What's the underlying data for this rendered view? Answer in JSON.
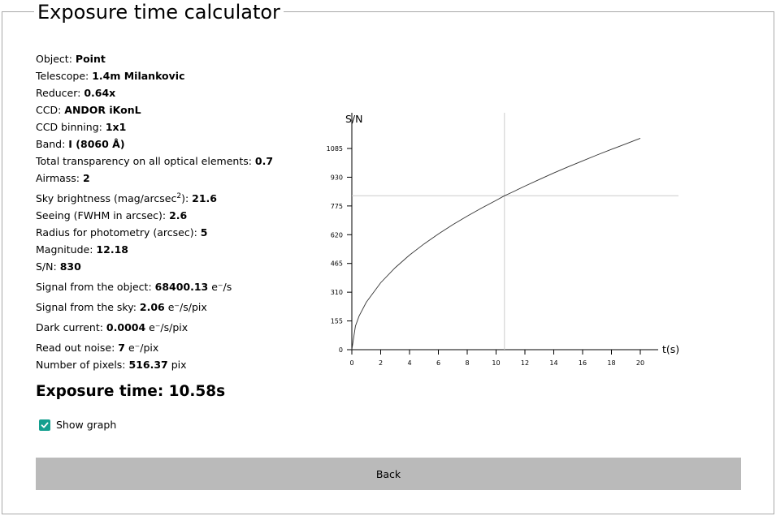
{
  "title": "Exposure time calculator",
  "params": [
    {
      "label": "Object: ",
      "value": "Point",
      "unit": ""
    },
    {
      "label": "Telescope: ",
      "value": "1.4m Milankovic",
      "unit": ""
    },
    {
      "label": "Reducer: ",
      "value": "0.64x",
      "unit": ""
    },
    {
      "label": "CCD: ",
      "value": "ANDOR iKonL",
      "unit": ""
    },
    {
      "label": "CCD binning: ",
      "value": "1x1",
      "unit": ""
    },
    {
      "label": "Band: ",
      "value": "I (8060 Å)",
      "unit": ""
    },
    {
      "label": "Total transparency on all optical elements: ",
      "value": "0.7",
      "unit": ""
    },
    {
      "label": "Airmass: ",
      "value": "2",
      "unit": ""
    },
    {
      "label_pre": "Sky brightness (mag/arcsec",
      "sup": "2",
      "label_post": "): ",
      "value": "21.6",
      "unit": ""
    },
    {
      "label": "Seeing (FWHM in arcsec): ",
      "value": "2.6",
      "unit": ""
    },
    {
      "label": "Radius for photometry (arcsec): ",
      "value": "5",
      "unit": ""
    },
    {
      "label": "Magnitude: ",
      "value": "12.18",
      "unit": ""
    },
    {
      "label": "S/N: ",
      "value": "830",
      "unit": ""
    },
    {
      "label": "Signal from the object: ",
      "value": "68400.13",
      "unit": " e⁻/s"
    },
    {
      "label": "Signal from the sky: ",
      "value": "2.06",
      "unit": " e⁻/s/pix"
    },
    {
      "label": "Dark current: ",
      "value": "0.0004",
      "unit": " e⁻/s/pix"
    },
    {
      "label": "Read out noise: ",
      "value": "7",
      "unit": " e⁻/pix"
    },
    {
      "label": "Number of pixels: ",
      "value": "516.37",
      "unit": " pix"
    }
  ],
  "exposure_text": "Exposure time: 10.58s",
  "show_graph_label": "Show graph",
  "show_graph_checked": true,
  "back_label": "Back",
  "colors": {
    "accent": "#139f8f",
    "button": "#bababa"
  },
  "chart_data": {
    "type": "line",
    "xlabel": "t(s)",
    "ylabel": "S/N",
    "xlim": [
      0,
      21
    ],
    "ylim": [
      0,
      1085
    ],
    "x_ticks": [
      0,
      2,
      4,
      6,
      8,
      10,
      12,
      14,
      16,
      18,
      20
    ],
    "y_ticks": [
      0,
      155,
      310,
      465,
      620,
      775,
      930,
      1085
    ],
    "series": [
      {
        "x": [
          0,
          0.25,
          0.5,
          1,
          2,
          3,
          4,
          5,
          6,
          7,
          8,
          9,
          10,
          10.58,
          11,
          12,
          13,
          14,
          15,
          16,
          17,
          18,
          19,
          20
        ],
        "y": [
          0,
          127,
          181,
          256,
          361,
          442,
          510,
          570,
          624,
          674,
          720,
          764,
          805,
          830,
          845,
          882,
          918,
          953,
          986,
          1018,
          1050,
          1080,
          1110,
          1140
        ]
      }
    ],
    "marker": {
      "x": 10.58,
      "y": 830
    },
    "grid": false
  }
}
